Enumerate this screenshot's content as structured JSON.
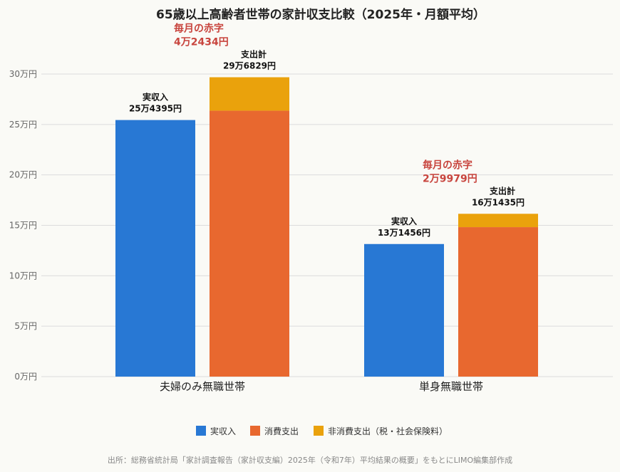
{
  "chart_data": {
    "type": "bar",
    "stacked": true,
    "title": "65歳以上高齢者世帯の家計収支比較（2025年・月額平均）",
    "categories": [
      "夫婦のみ無職世帯",
      "単身無職世帯"
    ],
    "yunit": "万円",
    "ylim": [
      0,
      300000
    ],
    "yticks": [
      0,
      50000,
      100000,
      150000,
      200000,
      250000,
      300000
    ],
    "ytick_labels": [
      "0万円",
      "5万円",
      "10万円",
      "15万円",
      "20万円",
      "25万円",
      "30万円"
    ],
    "grid": true,
    "legend_position": "bottom",
    "colors": {
      "income": "#2878d4",
      "consumption": "#e8682f",
      "non_consumption": "#eaa20c"
    },
    "legend": [
      "実収入",
      "消費支出",
      "非消費支出（税・社会保険料）"
    ],
    "groups": [
      {
        "category": "夫婦のみ無職世帯",
        "income": 254395,
        "consumption": 263700,
        "non_consumption": 33129,
        "total_expense": 296829,
        "income_label": [
          "実収入",
          "25万4395円"
        ],
        "expense_label": [
          "支出計",
          "29万6829円"
        ],
        "deficit_label": [
          "毎月の赤字",
          "4万2434円"
        ]
      },
      {
        "category": "単身無職世帯",
        "income": 131456,
        "consumption": 148200,
        "non_consumption": 13235,
        "total_expense": 161435,
        "income_label": [
          "実収入",
          "13万1456円"
        ],
        "expense_label": [
          "支出計",
          "16万1435円"
        ],
        "deficit_label": [
          "毎月の赤字",
          "2万9979円"
        ]
      }
    ],
    "source": "出所：総務省統計局「家計調査報告（家計収支編）2025年（令和7年）平均結果の概要」をもとにLIMO編集部作成"
  }
}
